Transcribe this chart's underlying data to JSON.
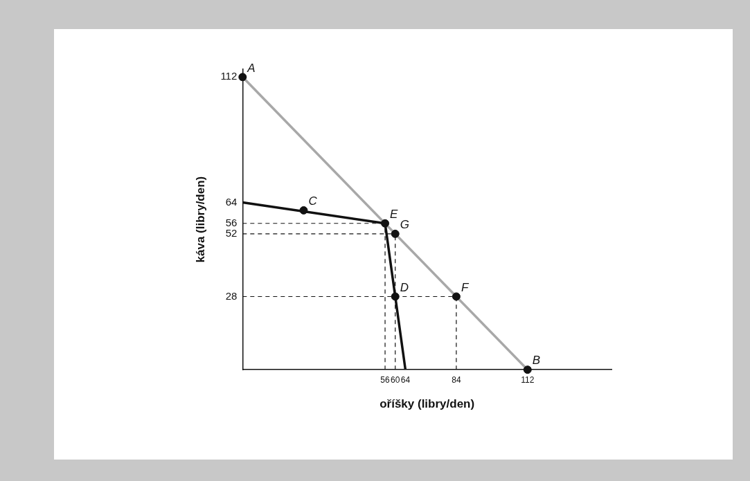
{
  "chart_data": {
    "type": "line",
    "xlabel": "oříšky (libry/den)",
    "ylabel": "káva (libry/den)",
    "xlim": [
      0,
      145
    ],
    "ylim": [
      0,
      115
    ],
    "xticks": [
      56,
      60,
      64,
      84,
      112
    ],
    "yticks": [
      28,
      52,
      56,
      64,
      112
    ],
    "grid": false,
    "legend": false,
    "marker": "none",
    "series": [
      {
        "color": "#a8a8a8",
        "x": [
          0,
          112
        ],
        "values": [
          112,
          0
        ]
      },
      {
        "color": "#111111",
        "x": [
          0,
          56,
          64
        ],
        "values": [
          64,
          56,
          0
        ]
      },
      {
        "color": "#111111",
        "line_style": "dashed",
        "x": [
          0,
          56
        ],
        "values": [
          56,
          56
        ]
      },
      {
        "color": "#111111",
        "line_style": "dashed",
        "x": [
          0,
          60
        ],
        "values": [
          52,
          52
        ]
      },
      {
        "color": "#111111",
        "line_style": "dashed",
        "x": [
          0,
          84
        ],
        "values": [
          28,
          28
        ]
      },
      {
        "color": "#111111",
        "line_style": "dashed",
        "x": [
          56,
          56
        ],
        "values": [
          0,
          56
        ]
      },
      {
        "color": "#111111",
        "line_style": "dashed",
        "x": [
          60,
          60
        ],
        "values": [
          0,
          52
        ]
      },
      {
        "color": "#111111",
        "line_style": "dashed",
        "x": [
          84,
          84
        ],
        "values": [
          0,
          28
        ]
      },
      {
        "type": "scatter",
        "color": "#111111",
        "marker": "circle",
        "x": [
          0,
          112,
          24,
          60,
          56,
          84,
          60
        ],
        "values": [
          112,
          0,
          61,
          28,
          56,
          28,
          52
        ]
      }
    ],
    "annotations": [
      {
        "text": "A",
        "x": 0,
        "y": 112
      },
      {
        "text": "B",
        "x": 112,
        "y": 0
      },
      {
        "text": "C",
        "x": 24,
        "y": 61
      },
      {
        "text": "D",
        "x": 60,
        "y": 28
      },
      {
        "text": "E",
        "x": 56,
        "y": 56
      },
      {
        "text": "F",
        "x": 84,
        "y": 28
      },
      {
        "text": "G",
        "x": 60,
        "y": 52
      }
    ]
  }
}
